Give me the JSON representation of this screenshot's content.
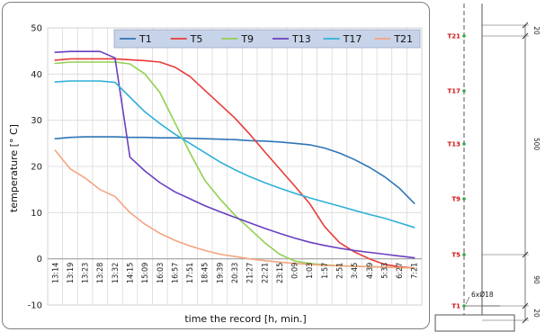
{
  "chart_data": {
    "type": "line",
    "xlabel": "time the record [h, min.]",
    "ylabel": "temperature [° C]",
    "ylim": [
      -10,
      50
    ],
    "yticks": [
      -10,
      0,
      10,
      20,
      30,
      40,
      50
    ],
    "grid": "on",
    "legend_position": "top",
    "categories": [
      "13:14",
      "13:19",
      "13:23",
      "13:28",
      "13:32",
      "14:15",
      "15:09",
      "16:03",
      "16:57",
      "17:51",
      "18:45",
      "19:39",
      "20:33",
      "21:27",
      "22:21",
      "23:15",
      "0:09",
      "1:03",
      "1:57",
      "2:51",
      "3:45",
      "4:39",
      "5:33",
      "6:27",
      "7:21"
    ],
    "series": [
      {
        "name": "T1",
        "color": "#2e75b6",
        "values": [
          26.0,
          26.3,
          26.4,
          26.4,
          26.4,
          26.3,
          26.3,
          26.2,
          26.2,
          26.1,
          26.0,
          25.9,
          25.8,
          25.6,
          25.5,
          25.3,
          25.0,
          24.7,
          24.0,
          22.9,
          21.5,
          19.8,
          17.8,
          15.3,
          12.0
        ]
      },
      {
        "name": "T5",
        "color": "#e83b3b",
        "values": [
          43.0,
          43.3,
          43.3,
          43.3,
          43.3,
          43.1,
          42.9,
          42.6,
          41.5,
          39.5,
          36.5,
          33.5,
          30.5,
          27.0,
          23.2,
          19.5,
          15.8,
          12.0,
          7.0,
          3.5,
          1.5,
          0.0,
          -1.2,
          -1.7,
          -2.0
        ]
      },
      {
        "name": "T9",
        "color": "#92d050",
        "values": [
          42.3,
          42.6,
          42.6,
          42.6,
          42.6,
          42.2,
          40.0,
          36.0,
          29.5,
          23.0,
          17.0,
          13.0,
          9.5,
          6.5,
          3.5,
          1.0,
          -0.5,
          -1.0,
          -1.3,
          -1.5,
          -1.6,
          -1.7,
          -1.8,
          -1.9,
          -2.0
        ]
      },
      {
        "name": "T13",
        "color": "#6a3fc0",
        "values": [
          44.7,
          44.9,
          44.9,
          44.9,
          43.5,
          22.0,
          19.0,
          16.5,
          14.5,
          13.0,
          11.5,
          10.2,
          9.0,
          7.8,
          6.6,
          5.5,
          4.5,
          3.6,
          2.9,
          2.3,
          1.8,
          1.4,
          1.0,
          0.6,
          0.2
        ]
      },
      {
        "name": "T17",
        "color": "#2eb0d8",
        "values": [
          38.3,
          38.5,
          38.5,
          38.5,
          38.2,
          35.0,
          31.8,
          29.3,
          27.0,
          25.0,
          23.0,
          21.0,
          19.3,
          17.8,
          16.5,
          15.3,
          14.2,
          13.2,
          12.3,
          11.4,
          10.5,
          9.6,
          8.8,
          7.8,
          6.8
        ]
      },
      {
        "name": "T21",
        "color": "#f4a582",
        "values": [
          23.5,
          19.5,
          17.5,
          15.0,
          13.5,
          10.0,
          7.5,
          5.5,
          4.0,
          2.8,
          1.8,
          1.0,
          0.5,
          0.0,
          -0.4,
          -0.7,
          -1.0,
          -1.2,
          -1.4,
          -1.5,
          -1.6,
          -1.7,
          -1.8,
          -1.9,
          -2.0
        ]
      }
    ]
  },
  "drawing": {
    "sensor_labels": [
      "T21",
      "T17",
      "T13",
      "T9",
      "T5",
      "T1"
    ],
    "dimensions": [
      "20",
      "500",
      "90",
      "20"
    ],
    "rebar_label": "6xØ18"
  }
}
